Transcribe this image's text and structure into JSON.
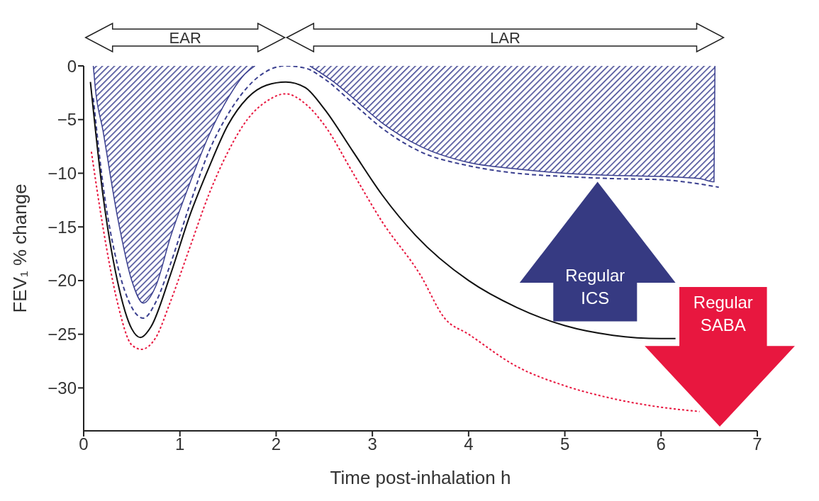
{
  "chart_data": {
    "type": "line",
    "xlabel": "Time post-inhalation h",
    "ylabel": "FEV₁ % change",
    "xlim": [
      0,
      7
    ],
    "xticks": [
      0,
      1,
      2,
      3,
      4,
      5,
      6,
      7
    ],
    "ylim": [
      -34,
      0
    ],
    "yticks": [
      0,
      {
        "value": -5,
        "label": "−5"
      },
      {
        "value": -10,
        "label": "−10"
      },
      {
        "value": -15,
        "label": "−15"
      },
      {
        "value": -20,
        "label": "−20"
      },
      {
        "value": -25,
        "label": "−25"
      },
      {
        "value": -30,
        "label": "−30"
      }
    ],
    "series": [
      {
        "type": "area",
        "color": "#3a3f8f",
        "x": [
          0.1,
          0.12,
          0.2,
          0.35,
          0.5,
          0.62,
          0.75,
          0.9,
          1.1,
          1.3,
          1.5,
          1.65,
          1.78,
          2.0,
          2.35,
          2.6,
          2.8,
          3.1,
          3.5,
          4.0,
          4.5,
          5.0,
          5.5,
          6.0,
          6.4,
          6.55,
          6.56
        ],
        "values": [
          0,
          -2,
          -6,
          -14,
          -20,
          -22.1,
          -20.5,
          -16,
          -11,
          -6.5,
          -3,
          -1,
          0,
          null,
          0,
          -1.5,
          -3,
          -5.3,
          -7.5,
          -9,
          -9.6,
          -10,
          -10.2,
          -10.3,
          -10.5,
          -10.8,
          0
        ]
      },
      {
        "color": "#3a3f8f",
        "line_style": "dashed",
        "x": [
          0.1,
          0.2,
          0.35,
          0.5,
          0.62,
          0.75,
          0.9,
          1.1,
          1.3,
          1.5,
          1.7,
          1.9,
          2.1,
          2.3,
          2.5,
          2.8,
          3.1,
          3.5,
          4.0,
          4.5,
          5.0,
          5.5,
          6.0,
          6.4,
          6.6
        ],
        "values": [
          -3,
          -11,
          -18.5,
          -22.5,
          -23.5,
          -22,
          -18.5,
          -13,
          -8,
          -4.5,
          -2,
          -0.5,
          0,
          -0.2,
          -1.2,
          -3.5,
          -5.8,
          -8,
          -9.3,
          -10,
          -10.3,
          -10.5,
          -10.6,
          -11,
          -11.3
        ]
      },
      {
        "color": "#e8173f",
        "line_style": "dotted",
        "x": [
          0.08,
          0.2,
          0.35,
          0.5,
          0.6,
          0.75,
          0.9,
          1.1,
          1.3,
          1.5,
          1.7,
          1.9,
          2.1,
          2.3,
          2.5,
          2.8,
          3.1,
          3.5,
          3.75,
          4.0,
          4.5,
          5.0,
          5.5,
          6.0,
          6.4
        ],
        "values": [
          -8,
          -15,
          -22,
          -26,
          -26.4,
          -25.3,
          -22,
          -17,
          -12,
          -8,
          -5,
          -3.3,
          -2.6,
          -3.5,
          -5.5,
          -10,
          -14.5,
          -19.5,
          -23.5,
          -25,
          -28,
          -29.8,
          -31,
          -31.8,
          -32.2
        ]
      },
      {
        "color": "#111111",
        "line_style": "solid",
        "x": [
          0.07,
          0.2,
          0.35,
          0.5,
          0.59,
          0.7,
          0.9,
          1.1,
          1.3,
          1.5,
          1.7,
          1.9,
          2.1,
          2.3,
          2.5,
          2.8,
          3.1,
          3.45,
          4.0,
          4.5,
          5.0,
          5.5,
          6.0,
          6.15
        ],
        "values": [
          -1.5,
          -12,
          -20,
          -24.5,
          -25.3,
          -24.3,
          -19.5,
          -14,
          -9.5,
          -5.5,
          -3,
          -1.8,
          -1.5,
          -2,
          -4,
          -8,
          -12,
          -15.8,
          -20,
          -22.5,
          -24.2,
          -25.1,
          -25.4,
          -25.4
        ]
      }
    ],
    "annotations": [
      "EAR",
      "LAR",
      "Regular ICS",
      "Regular SABA"
    ]
  }
}
